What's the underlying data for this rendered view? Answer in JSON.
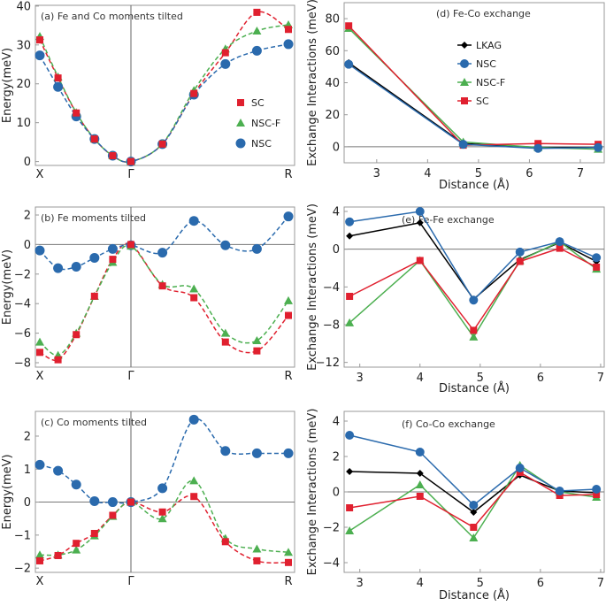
{
  "colors": {
    "SC": "#e0202f",
    "NSC-F": "#4caf50",
    "NSC": "#2a6aad",
    "LKAG": "#000000"
  },
  "chart_data": [
    {
      "type": "scatter",
      "annotation": "(a) Fe and Co moments tilted",
      "ylabel": "Energy(meV)",
      "xticklabels": [
        "X",
        "Γ",
        "R"
      ],
      "xtick_index": [
        0,
        5,
        10
      ],
      "ylim": [
        -1,
        40.2
      ],
      "yticks": [
        0,
        10,
        20,
        30,
        40
      ],
      "fit": "dashed spline",
      "legend": "right",
      "legend_order": [
        "SC",
        "NSC-F",
        "NSC"
      ],
      "series": [
        {
          "name": "SC",
          "values": [
            31.3,
            21.5,
            12.5,
            5.8,
            1.5,
            0,
            4.5,
            17.5,
            28,
            38.4,
            34
          ]
        },
        {
          "name": "NSC-F",
          "values": [
            32.2,
            21.8,
            12.6,
            5.8,
            1.5,
            0,
            4.6,
            18.3,
            29,
            33.6,
            35.2
          ]
        },
        {
          "name": "NSC",
          "values": [
            27.3,
            19.2,
            11.6,
            5.8,
            1.5,
            0,
            4.5,
            17.2,
            25.1,
            28.5,
            30.2
          ]
        }
      ]
    },
    {
      "type": "scatter",
      "annotation": "(b) Fe moments tilted",
      "ylabel": "Energy(meV)",
      "xticklabels": [
        "X",
        "Γ",
        "R"
      ],
      "xtick_index": [
        0,
        5,
        10
      ],
      "ylim": [
        -8.3,
        2.54
      ],
      "yticks": [
        -8,
        -6,
        -4,
        -2,
        0,
        2
      ],
      "fit": "dashed spline",
      "series": [
        {
          "name": "SC",
          "values": [
            -7.3,
            -7.8,
            -6.1,
            -3.5,
            -1.0,
            0,
            -2.8,
            -3.6,
            -6.6,
            -7.2,
            -4.8
          ]
        },
        {
          "name": "NSC-F",
          "values": [
            -6.6,
            -7.5,
            -6.0,
            -3.5,
            -1.2,
            -0.1,
            -2.7,
            -3.0,
            -6.0,
            -6.5,
            -3.8
          ]
        },
        {
          "name": "NSC",
          "values": [
            -0.4,
            -1.6,
            -1.5,
            -0.9,
            -0.3,
            -0.05,
            -0.55,
            1.6,
            -0.05,
            -0.3,
            1.9
          ]
        }
      ]
    },
    {
      "type": "scatter",
      "annotation": "(c) Co moments tilted",
      "ylabel": "Energy(meV)",
      "xticklabels": [
        "X",
        "Γ",
        "R"
      ],
      "xtick_index": [
        0,
        5,
        10
      ],
      "ylim": [
        -2.13,
        2.75
      ],
      "yticks": [
        -2,
        -1,
        0,
        1,
        2
      ],
      "fit": "dashed spline",
      "series": [
        {
          "name": "SC",
          "values": [
            -1.78,
            -1.62,
            -1.25,
            -0.95,
            -0.4,
            0,
            -0.3,
            0.17,
            -1.2,
            -1.78,
            -1.83
          ]
        },
        {
          "name": "NSC-F",
          "values": [
            -1.6,
            -1.6,
            -1.45,
            -1.02,
            -0.43,
            0,
            -0.5,
            0.65,
            -1.1,
            -1.42,
            -1.52
          ]
        },
        {
          "name": "NSC",
          "values": [
            1.13,
            0.95,
            0.53,
            0.03,
            0,
            0,
            0.42,
            2.5,
            1.55,
            1.48,
            1.48
          ]
        }
      ]
    },
    {
      "type": "line",
      "annotation": "(d) Fe-Co exchange",
      "xlabel": "Distance (Å)",
      "ylabel": "Exchange Interactions (meV)",
      "xlim": [
        2.36,
        7.47
      ],
      "ylim": [
        -10,
        90
      ],
      "xticks": [
        3,
        4,
        5,
        6,
        7
      ],
      "yticks": [
        0,
        20,
        40,
        60,
        80
      ],
      "legend": "center",
      "legend_order": [
        "LKAG",
        "NSC",
        "NSC-F",
        "SC"
      ],
      "x": [
        2.45,
        4.7,
        6.17,
        7.35
      ],
      "series": [
        {
          "name": "LKAG",
          "values": [
            52.5,
            2,
            -0.5,
            -0.5
          ]
        },
        {
          "name": "NSC",
          "values": [
            51.5,
            1.5,
            -1,
            -0.5
          ]
        },
        {
          "name": "NSC-F",
          "values": [
            74,
            3,
            -0.5,
            -1.5
          ]
        },
        {
          "name": "SC",
          "values": [
            75.5,
            1,
            2,
            1.5
          ]
        }
      ]
    },
    {
      "type": "line",
      "annotation": "(e) Fe-Fe exchange",
      "xlabel": "Distance (Å)",
      "ylabel": "Exchange Interactions (meV)",
      "xlim": [
        2.74,
        7.06
      ],
      "ylim": [
        -12.5,
        4.47
      ],
      "xticks": [
        3,
        4,
        5,
        6,
        7
      ],
      "yticks": [
        -12,
        -8,
        -4,
        0,
        4
      ],
      "x": [
        2.83,
        4.0,
        4.89,
        5.66,
        6.32,
        6.93
      ],
      "series": [
        {
          "name": "LKAG",
          "values": [
            1.4,
            2.8,
            -5.3,
            -1.1,
            0.7,
            -1.3
          ]
        },
        {
          "name": "NSC",
          "values": [
            2.9,
            4.0,
            -5.4,
            -0.3,
            0.8,
            -0.9
          ]
        },
        {
          "name": "NSC-F",
          "values": [
            -7.8,
            -1.2,
            -9.3,
            -1.2,
            0.8,
            -2.1
          ]
        },
        {
          "name": "SC",
          "values": [
            -5.0,
            -1.2,
            -8.6,
            -1.3,
            0.1,
            -1.9
          ]
        }
      ]
    },
    {
      "type": "line",
      "annotation": "(f) Co-Co exchange",
      "xlabel": "Distance (Å)",
      "ylabel": "Exchange Interactions (meV)",
      "xlim": [
        2.74,
        7.06
      ],
      "ylim": [
        -4.55,
        4.55
      ],
      "xticks": [
        3,
        4,
        5,
        6,
        7
      ],
      "yticks": [
        -4,
        -2,
        0,
        2,
        4
      ],
      "x": [
        2.83,
        4.0,
        4.89,
        5.66,
        6.32,
        6.93
      ],
      "series": [
        {
          "name": "LKAG",
          "values": [
            1.15,
            1.05,
            -1.15,
            0.95,
            0.05,
            -0.05
          ]
        },
        {
          "name": "NSC",
          "values": [
            3.2,
            2.25,
            -0.75,
            1.35,
            0.05,
            0.15
          ]
        },
        {
          "name": "NSC-F",
          "values": [
            -2.2,
            0.4,
            -2.6,
            1.5,
            0,
            -0.3
          ]
        },
        {
          "name": "SC",
          "values": [
            -0.9,
            -0.25,
            -2.0,
            1.1,
            -0.2,
            -0.15
          ]
        }
      ]
    }
  ]
}
